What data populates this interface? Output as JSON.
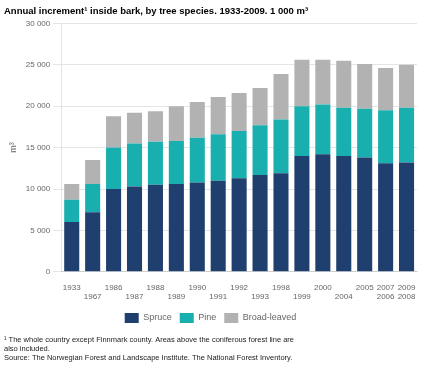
{
  "chart_data": {
    "type": "bar",
    "stacked": true,
    "title": "Annual increment¹ inside bark, by tree species. 1933-2009. 1 000 m³",
    "ylabel": "m³",
    "categories": [
      [
        "1933",
        null
      ],
      [
        null,
        "1967"
      ],
      [
        "1986",
        null
      ],
      [
        null,
        "1987"
      ],
      [
        "1988",
        null
      ],
      [
        null,
        "1989"
      ],
      [
        "1990",
        null
      ],
      [
        null,
        "1991"
      ],
      [
        "1992",
        null
      ],
      [
        null,
        "1993"
      ],
      [
        "1998",
        null
      ],
      [
        null,
        "1999"
      ],
      [
        "2000",
        null
      ],
      [
        null,
        "2004"
      ],
      [
        "2005",
        null
      ],
      [
        "2007",
        "2006"
      ],
      [
        "2009",
        "2008"
      ]
    ],
    "series": [
      {
        "name": "Spruce",
        "color": "#1f3f6e",
        "values": [
          6000,
          7200,
          10000,
          10300,
          10500,
          10600,
          10800,
          11000,
          11300,
          11700,
          11900,
          14000,
          14200,
          14000,
          13800,
          13100,
          13200
        ]
      },
      {
        "name": "Pine",
        "color": "#1aafaf",
        "values": [
          2700,
          3400,
          5000,
          5200,
          5200,
          5200,
          5400,
          5600,
          5700,
          6000,
          6500,
          6000,
          6000,
          5800,
          5900,
          6400,
          6600
        ]
      },
      {
        "name": "Broad-leaved",
        "color": "#b2b2b2",
        "values": [
          1900,
          2900,
          3800,
          3700,
          3700,
          4200,
          4300,
          4500,
          4600,
          4500,
          5500,
          5600,
          5400,
          5700,
          5400,
          5100,
          5200
        ]
      }
    ],
    "ylim": [
      0,
      30000
    ],
    "yticks": [
      0,
      {
        "value": 5000,
        "label": "5 000"
      },
      {
        "value": 10000,
        "label": "10 000"
      },
      {
        "value": 15000,
        "label": "15 000"
      },
      {
        "value": 20000,
        "label": "20 000"
      },
      {
        "value": 25000,
        "label": "25 000"
      },
      {
        "value": 30000,
        "label": "30 000"
      }
    ],
    "grid": true,
    "legend": "bottom",
    "annotations": [
      "¹ The whole country except Finnmark county. Areas above the coniferous forest line are",
      "also included.",
      "Source: The Norwegian Forest and Landscape Institute. The National Forest Inventory."
    ]
  }
}
